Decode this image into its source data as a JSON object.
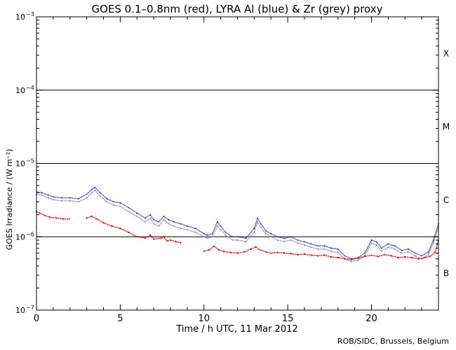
{
  "chart_data": {
    "type": "line",
    "title": "GOES 0.1–0.8nm (red), LYRA Al (blue) & Zr (grey) proxy",
    "xlabel": "Time / h UTC, 11 Mar 2012",
    "ylabel": "GOES Irradiance / (W m⁻²)",
    "xlim": [
      0,
      24
    ],
    "ylim": [
      1e-07,
      0.001
    ],
    "yscale": "log",
    "x_ticks": [
      0,
      5,
      10,
      15,
      20
    ],
    "x_tick_labels": [
      "0",
      "5",
      "10",
      "15",
      "20"
    ],
    "y_tick_mantissa": "10",
    "y_tick_exponents": [
      "−7",
      "−6",
      "−5",
      "−4",
      "−3"
    ],
    "y_tick_values": [
      1e-07,
      1e-06,
      1e-05,
      0.0001,
      0.001
    ],
    "flare_class_lines": [
      1e-06,
      1e-05,
      0.0001
    ],
    "flare_classes": [
      {
        "label": "B",
        "mid": 3.16e-07
      },
      {
        "label": "C",
        "mid": 3.16e-06
      },
      {
        "label": "M",
        "mid": 3.16e-05
      },
      {
        "label": "X",
        "mid": 0.000316
      }
    ],
    "series": [
      {
        "name": "GOES 0.1-0.8nm",
        "color": "#e00000",
        "x": [
          0.0,
          0.2,
          0.5,
          0.8,
          1.2,
          1.6,
          1.95,
          3.0,
          3.3,
          3.6,
          4.0,
          4.5,
          5.0,
          5.5,
          6.0,
          6.5,
          6.8,
          7.0,
          7.4,
          7.6,
          7.8,
          8.0,
          8.3,
          8.6,
          10.0,
          10.3,
          10.6,
          10.9,
          11.2,
          11.6,
          12.0,
          12.4,
          12.8,
          13.1,
          13.3,
          13.7,
          14.0,
          14.4,
          14.8,
          15.2,
          15.6,
          16.0,
          16.4,
          16.8,
          17.2,
          17.6,
          18.0,
          18.4,
          18.8,
          19.2,
          19.6,
          20.0,
          20.4,
          20.8,
          21.2,
          21.6,
          22.0,
          22.4,
          22.8,
          23.2,
          23.5,
          23.8,
          24.0
        ],
        "y": [
          2.2e-06,
          2.1e-06,
          1.95e-06,
          1.85e-06,
          1.8e-06,
          1.75e-06,
          1.75e-06,
          1.8e-06,
          1.9e-06,
          1.75e-06,
          1.55e-06,
          1.4e-06,
          1.3e-06,
          1.15e-06,
          1e-06,
          9.6e-07,
          1.05e-06,
          9.3e-07,
          9.5e-07,
          1e-06,
          8.8e-07,
          9e-07,
          8.6e-07,
          8.3e-07,
          6.4e-07,
          6.6e-07,
          7.4e-07,
          6.6e-07,
          6.3e-07,
          6.1e-07,
          6e-07,
          6.2e-07,
          6.8e-07,
          7.3e-07,
          6.7e-07,
          6.2e-07,
          6e-07,
          6.1e-07,
          6e-07,
          5.9e-07,
          5.7e-07,
          5.8e-07,
          5.6e-07,
          5.5e-07,
          5.6e-07,
          5.3e-07,
          5.2e-07,
          5e-07,
          4.9e-07,
          5.1e-07,
          5.4e-07,
          5.6e-07,
          5.4e-07,
          5.7e-07,
          5.5e-07,
          5.2e-07,
          5.3e-07,
          5.2e-07,
          5e-07,
          5.2e-07,
          5.4e-07,
          6.2e-07,
          9e-07
        ]
      },
      {
        "name": "LYRA Al proxy",
        "color": "#1020c0",
        "x": [
          0.0,
          0.3,
          0.7,
          1.0,
          1.5,
          2.0,
          2.5,
          3.0,
          3.3,
          3.5,
          3.8,
          4.2,
          4.6,
          5.0,
          5.5,
          6.0,
          6.5,
          6.8,
          7.0,
          7.3,
          7.6,
          7.9,
          8.2,
          8.6,
          9.0,
          9.5,
          10.0,
          10.2,
          10.5,
          10.8,
          11.0,
          11.3,
          11.7,
          12.0,
          12.5,
          13.0,
          13.2,
          13.4,
          13.7,
          14.0,
          14.4,
          14.8,
          15.2,
          15.6,
          16.0,
          16.4,
          16.8,
          17.2,
          17.6,
          18.0,
          18.4,
          18.8,
          19.2,
          19.6,
          20.0,
          20.3,
          20.6,
          21.0,
          21.4,
          21.8,
          22.2,
          22.6,
          23.0,
          23.4,
          23.7,
          24.0
        ],
        "y": [
          4.1e-06,
          4e-06,
          3.7e-06,
          3.5e-06,
          3.4e-06,
          3.4e-06,
          3.3e-06,
          3.8e-06,
          4.4e-06,
          4.7e-06,
          4e-06,
          3.3e-06,
          3e-06,
          2.9e-06,
          2.5e-06,
          2.1e-06,
          1.8e-06,
          2e-06,
          1.7e-06,
          1.6e-06,
          1.9e-06,
          1.7e-06,
          1.6e-06,
          1.5e-06,
          1.4e-06,
          1.3e-06,
          1.1e-06,
          1.05e-06,
          1.1e-06,
          1.6e-06,
          1.4e-06,
          1.15e-06,
          1e-06,
          1e-06,
          9.5e-07,
          1.3e-06,
          1.8e-06,
          1.5e-06,
          1.2e-06,
          1.1e-06,
          1e-06,
          9.5e-07,
          1e-06,
          9e-07,
          8.5e-07,
          8e-07,
          7.5e-07,
          7.5e-07,
          7e-07,
          6.8e-07,
          5.5e-07,
          5e-07,
          5.2e-07,
          6e-07,
          9e-07,
          8.5e-07,
          7e-07,
          8e-07,
          7.5e-07,
          6.5e-07,
          6.8e-07,
          6e-07,
          5.5e-07,
          6.2e-07,
          9e-07,
          1.5e-06
        ]
      },
      {
        "name": "LYRA Zr proxy",
        "color": "#808080",
        "x": [
          0.0,
          0.3,
          0.7,
          1.0,
          1.5,
          2.0,
          2.5,
          3.0,
          3.3,
          3.5,
          3.8,
          4.2,
          4.6,
          5.0,
          5.5,
          6.0,
          6.5,
          6.8,
          7.0,
          7.3,
          7.6,
          7.9,
          8.2,
          8.6,
          9.0,
          9.5,
          10.0,
          10.2,
          10.5,
          10.8,
          11.0,
          11.3,
          11.7,
          12.0,
          12.5,
          13.0,
          13.2,
          13.4,
          13.7,
          14.0,
          14.4,
          14.8,
          15.2,
          15.6,
          16.0,
          16.4,
          16.8,
          17.2,
          17.6,
          18.0,
          18.4,
          18.8,
          19.2,
          19.6,
          20.0,
          20.3,
          20.6,
          21.0,
          21.4,
          21.8,
          22.2,
          22.6,
          23.0,
          23.4,
          23.7,
          24.0
        ],
        "y": [
          3.8e-06,
          3.7e-06,
          3.4e-06,
          3.2e-06,
          3.1e-06,
          3.1e-06,
          3e-06,
          3.4e-06,
          4e-06,
          4.3e-06,
          3.6e-06,
          3e-06,
          2.7e-06,
          2.6e-06,
          2.2e-06,
          1.9e-06,
          1.6e-06,
          1.8e-06,
          1.5e-06,
          1.4e-06,
          1.7e-06,
          1.5e-06,
          1.4e-06,
          1.3e-06,
          1.25e-06,
          1.15e-06,
          1e-06,
          9.5e-07,
          1e-06,
          1.4e-06,
          1.25e-06,
          1.05e-06,
          9e-07,
          9e-07,
          8.6e-07,
          1.15e-06,
          1.6e-06,
          1.35e-06,
          1.1e-06,
          1e-06,
          9e-07,
          8.6e-07,
          9e-07,
          8.2e-07,
          7.7e-07,
          7.2e-07,
          6.8e-07,
          6.8e-07,
          6.3e-07,
          6.1e-07,
          5e-07,
          4.6e-07,
          4.8e-07,
          5.5e-07,
          8.2e-07,
          7.7e-07,
          6.4e-07,
          7.2e-07,
          6.8e-07,
          6e-07,
          6.2e-07,
          5.5e-07,
          5e-07,
          5.7e-07,
          8.2e-07,
          1.35e-06
        ]
      }
    ]
  },
  "footer": {
    "credit": "ROB/SIDC, Brussels, Belgium"
  }
}
